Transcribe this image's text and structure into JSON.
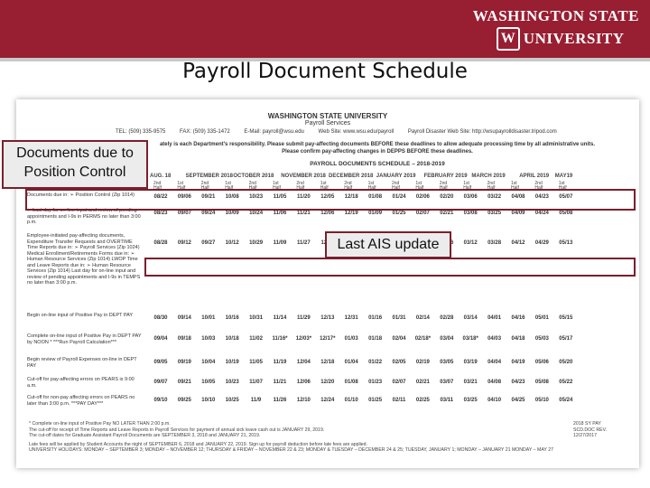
{
  "logo": {
    "line1": "WASHINGTON STATE",
    "seal": "W",
    "line2": "UNIVERSITY"
  },
  "slide_title": "Payroll Document Schedule",
  "doc": {
    "header1": "WASHINGTON STATE UNIVERSITY",
    "header2": "Payroll Services",
    "contact": [
      "TEL: (509) 335-9575",
      "FAX: (509) 335-1472",
      "E-Mail: payroll@wsu.edu",
      "Web Site: www.wsu.edu/payroll",
      "Payroll Disaster Web Site: http://wsupayrolldisaster.tripod.com"
    ],
    "notice1": "ately is each Department's responsibility. Please submit pay-affecting documents BEFORE these deadlines to allow adequate processing time by all administrative units.",
    "notice2": "Please confirm pay-affecting changes in DEPPS BEFORE these deadlines.",
    "schedule_title": "PAYROLL DOCUMENTS SCHEDULE – 2018-2019",
    "months": [
      "AUG. 18",
      "SEPTEMBER 2018",
      "OCTOBER 2018",
      "NOVEMBER 2018",
      "DECEMBER 2018",
      "JANUARY 2019",
      "FEBRUARY 2019",
      "MARCH 2019",
      "APRIL 2019",
      "MAY19"
    ],
    "halves": [
      "2nd Half",
      "1st Half",
      "2nd Half",
      "1st Half",
      "2nd Half",
      "1st Half",
      "2nd Half",
      "1st Half",
      "2nd Half",
      "1st Half",
      "2nd Half",
      "1st Half",
      "2nd Half",
      "1st Half",
      "2nd Half",
      "1st Half",
      "2nd Half",
      "1st Half"
    ],
    "rows": [
      {
        "label": "Documents due in: ➢ Position Control (Zip 1014)",
        "values": [
          "08/22",
          "09/06",
          "09/21",
          "10/08",
          "10/23",
          "11/05",
          "11/20",
          "12/05",
          "12/18",
          "01/08",
          "01/24",
          "02/06",
          "02/20",
          "03/06",
          "03/22",
          "04/08",
          "04/23",
          "05/07"
        ]
      },
      {
        "label": "➢ Last day for on-line input and review of pending appointments and I-9s in PERMS no later than 3:00 p.m.",
        "values": [
          "08/23",
          "09/07",
          "09/24",
          "10/09",
          "10/24",
          "11/06",
          "11/21",
          "12/06",
          "12/19",
          "01/09",
          "01/25",
          "02/07",
          "02/21",
          "03/08",
          "03/25",
          "04/09",
          "04/24",
          "05/08"
        ]
      },
      {
        "label": "Employee-initiated pay-affecting documents, Expenditure Transfer Requests and OVERTIME Time Reports due in: ➢ Payroll Services (Zip 1024) Medical Enrollment/Retirements Forms due in: ➢ Human Resource Services (Zip 1014) LWOP Time and Leave Reports due in: ➢ Human Resource Services (Zip 1014) Last day for on-line input and review of pending appointments and I-9s in TEMPS no later than 3:00 p.m.",
        "values": [
          "08/28",
          "09/12",
          "09/27",
          "10/12",
          "10/29",
          "11/09",
          "11/27",
          "12/11",
          "12/27",
          "01/14",
          "01/29",
          "02/12",
          "02/26",
          "03/12",
          "03/28",
          "04/12",
          "04/29",
          "05/13"
        ]
      },
      {
        "label": "Begin on-line input of Positive Pay in DEPT PAY",
        "values": [
          "08/30",
          "09/14",
          "10/01",
          "10/16",
          "10/31",
          "11/14",
          "11/29",
          "12/13",
          "12/31",
          "01/16",
          "01/31",
          "02/14",
          "02/28",
          "03/14",
          "04/01",
          "04/16",
          "05/01",
          "05/15"
        ]
      },
      {
        "label": "Complete on-line input of Positive Pay in DEPT PAY by NOON * ***Run Payroll Calculation***",
        "values": [
          "09/04",
          "09/18",
          "10/03",
          "10/18",
          "11/02",
          "11/16*",
          "12/03*",
          "12/17*",
          "01/03",
          "01/18",
          "02/04",
          "02/18*",
          "03/04",
          "03/18*",
          "04/03",
          "04/18",
          "05/03",
          "05/17"
        ]
      },
      {
        "label": "Begin review of Payroll Expenses on-line in DEPT PAY",
        "values": [
          "09/05",
          "09/19",
          "10/04",
          "10/19",
          "11/05",
          "11/19",
          "12/04",
          "12/18",
          "01/04",
          "01/22",
          "02/05",
          "02/19",
          "03/05",
          "03/19",
          "04/04",
          "04/19",
          "05/06",
          "05/20"
        ]
      },
      {
        "label": "Cut-off for pay-affecting errors on PEARS is 9:00 a.m.",
        "values": [
          "09/07",
          "09/21",
          "10/05",
          "10/23",
          "11/07",
          "11/21",
          "12/06",
          "12/20",
          "01/08",
          "01/23",
          "02/07",
          "02/21",
          "03/07",
          "03/21",
          "04/08",
          "04/23",
          "05/08",
          "05/22"
        ]
      },
      {
        "label": "Cut-off for non-pay affecting errors on PEARS no later than 3:00 p.m. ***PAY DAY***",
        "values": [
          "09/10",
          "09/25",
          "10/10",
          "10/25",
          "11/9",
          "11/26",
          "12/10",
          "12/24",
          "01/10",
          "01/25",
          "02/11",
          "02/25",
          "03/11",
          "03/25",
          "04/10",
          "04/25",
          "05/10",
          "05/24"
        ]
      }
    ],
    "footnotes": [
      "* Complete on-line input of Positive Pay NO LATER THAN 2:00 p.m.",
      "The cut-off for receipt of Time Reports and Leave Reports in Payroll Services for payment of annual sick leave cash out is JANUARY 29, 2019.",
      "The cut-off dates for Graduate Assistant Payroll Documents are SEPTEMBER 3, 2018 and JANUARY 21, 2019.",
      "Late fees will be applied by Student Accounts the night of SEPTEMBER 6, 2018 and JANUARY 22, 2019. Sign up for payroll deduction before late fees are applied.",
      "UNIVERSITY HOLIDAYS: MONDAY – SEPTEMBER 3; MONDAY – NOVEMBER 12; THURSDAY & FRIDAY – NOVEMBER 22 & 23; MONDAY & TUESDAY – DECEMBER 24 & 25; TUESDAY, JANUARY 1; MONDAY – JANUARY 21 MONDAY – MAY 27"
    ],
    "ref": [
      "2018 SY PAY",
      "SCD.DOC REV.",
      "12/27/2017"
    ]
  },
  "callouts": {
    "position_control": "Documents due to Position Control",
    "ais_update": "Last AIS update"
  }
}
